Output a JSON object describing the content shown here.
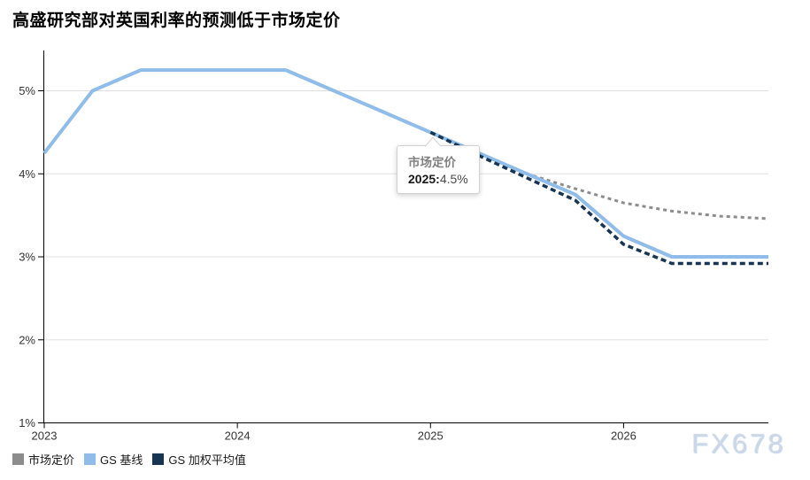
{
  "title": "高盛研究部对英国利率的预测低于市场定价",
  "watermark": "FX678",
  "tooltip": {
    "series": "市场定价",
    "label": "2025:",
    "value": "4.5%"
  },
  "legend": [
    {
      "label": "市场定价",
      "color": "#8c8c8c"
    },
    {
      "label": "GS 基线",
      "color": "#8fbce8"
    },
    {
      "label": "GS 加权平均值",
      "color": "#173452"
    }
  ],
  "chart_data": {
    "type": "line",
    "title": "高盛研究部对英国利率的预测低于市场定价",
    "xlabel": "",
    "ylabel": "",
    "x": [
      2023,
      2023.25,
      2023.5,
      2023.75,
      2024,
      2024.25,
      2024.5,
      2024.75,
      2025,
      2025.25,
      2025.5,
      2025.75,
      2026,
      2026.25,
      2026.5,
      2026.75
    ],
    "series": [
      {
        "id": "market-pricing",
        "name": "市场定价",
        "color": "#8c8c8c",
        "style": "dashed",
        "dash": "4 4",
        "width": 3,
        "values": [
          4.25,
          5.0,
          5.25,
          5.25,
          5.25,
          5.25,
          5.0,
          4.75,
          4.5,
          4.25,
          4.0,
          3.82,
          3.65,
          3.55,
          3.49,
          3.46
        ]
      },
      {
        "id": "gs-baseline",
        "name": "GS 基线",
        "color": "#8fbce8",
        "style": "solid",
        "dash": "",
        "width": 4,
        "values": [
          4.25,
          5.0,
          5.25,
          5.25,
          5.25,
          5.25,
          5.0,
          4.75,
          4.5,
          4.25,
          4.0,
          3.75,
          3.25,
          3.0,
          3.0,
          3.0
        ]
      },
      {
        "id": "gs-weighted-average",
        "name": "GS 加权平均值",
        "color": "#173452",
        "style": "dashed",
        "dash": "6 4",
        "width": 3.5,
        "values": [
          null,
          null,
          null,
          null,
          null,
          null,
          null,
          null,
          4.5,
          4.22,
          3.95,
          3.68,
          3.15,
          2.92,
          2.92,
          2.92
        ]
      }
    ],
    "xticks": [
      {
        "label": "2023",
        "value": 2023
      },
      {
        "label": "2024",
        "value": 2024
      },
      {
        "label": "2025",
        "value": 2025
      },
      {
        "label": "2026",
        "value": 2026
      }
    ],
    "yticks": [
      {
        "label": "1%",
        "value": 1
      },
      {
        "label": "2%",
        "value": 2
      },
      {
        "label": "3%",
        "value": 3
      },
      {
        "label": "4%",
        "value": 4
      },
      {
        "label": "5%",
        "value": 5
      }
    ],
    "xlim": [
      2023,
      2026.75
    ],
    "ylim": [
      1,
      5.48
    ],
    "grid": "horizontal",
    "legend_position": "bottom-left",
    "annotation": {
      "series": "市场定价",
      "x": 2025,
      "y": 4.5,
      "text": "2025:4.5%"
    }
  }
}
